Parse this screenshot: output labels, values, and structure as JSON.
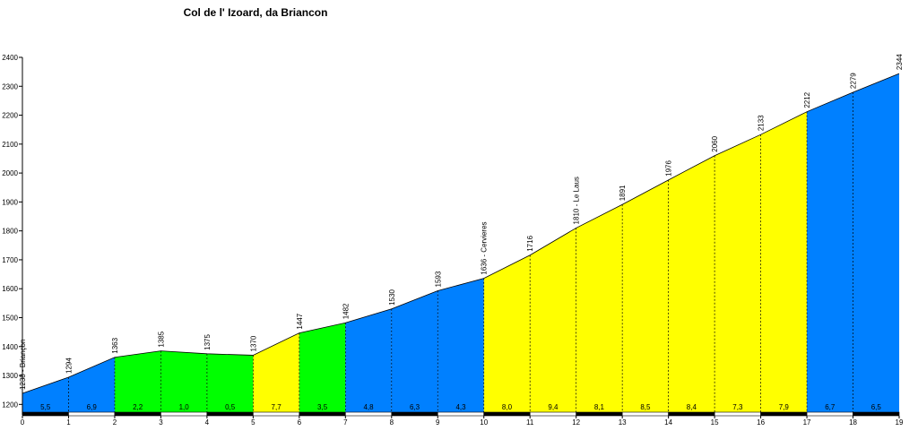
{
  "chart_data": {
    "type": "area",
    "title": "Col de l' Izoard, da Briancon",
    "xlabel": "",
    "ylabel": "",
    "xlim": [
      0,
      19
    ],
    "ylim": [
      1170,
      2400
    ],
    "x_ticks": [
      "0",
      "1",
      "2",
      "3",
      "4",
      "5",
      "6",
      "7",
      "8",
      "9",
      "10",
      "11",
      "12",
      "13",
      "14",
      "15",
      "16",
      "17",
      "18",
      "19"
    ],
    "y_ticks": [
      "1200",
      "1300",
      "1400",
      "1500",
      "1600",
      "1700",
      "1800",
      "1900",
      "2000",
      "2100",
      "2200",
      "2300",
      "2400"
    ],
    "x": [
      0,
      1,
      2,
      3,
      4,
      5,
      6,
      7,
      8,
      9,
      10,
      11,
      12,
      13,
      14,
      15,
      16,
      17,
      18,
      19
    ],
    "elevation": [
      1238,
      1294,
      1363,
      1385,
      1375,
      1370,
      1447,
      1482,
      1530,
      1593,
      1636,
      1716,
      1810,
      1891,
      1976,
      2060,
      2133,
      2212,
      2279,
      2344
    ],
    "point_labels": [
      "1238 - Briançon",
      "1294",
      "1363",
      "1385",
      "1375",
      "1370",
      "1447",
      "1482",
      "1530",
      "1593",
      "1636 - Cervieres",
      "1716",
      "1810 - Le Laus",
      "1891",
      "1976",
      "2060",
      "2133",
      "2212",
      "2279",
      "2344"
    ],
    "gradients": [
      "5,5",
      "6,9",
      "2,2",
      "1,0",
      "0,5",
      "7,7",
      "3,5",
      "4,8",
      "6,3",
      "4,3",
      "8,0",
      "9,4",
      "8,1",
      "8,5",
      "8,4",
      "7,3",
      "7,9",
      "6,7",
      "6,5"
    ],
    "segment_colors": [
      "#0080ff",
      "#0080ff",
      "#00ff00",
      "#00ff00",
      "#00ff00",
      "#ffff00",
      "#00ff00",
      "#0080ff",
      "#0080ff",
      "#0080ff",
      "#ffff00",
      "#ffff00",
      "#ffff00",
      "#ffff00",
      "#ffff00",
      "#ffff00",
      "#ffff00",
      "#0080ff",
      "#0080ff"
    ],
    "grid": false
  }
}
